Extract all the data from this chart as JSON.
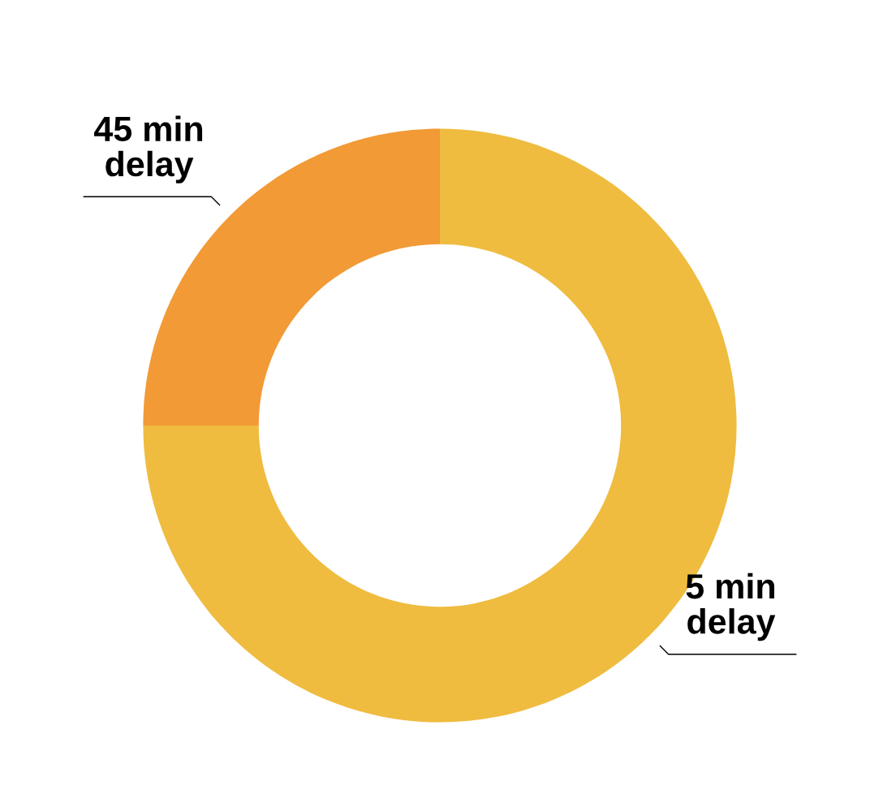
{
  "chart_data": {
    "type": "donut",
    "categories": [
      "5 min\ndelay",
      "45 min\ndelay"
    ],
    "values": [
      75,
      25
    ],
    "colors": [
      "#efbc40",
      "#f29a36"
    ],
    "legend": false
  }
}
